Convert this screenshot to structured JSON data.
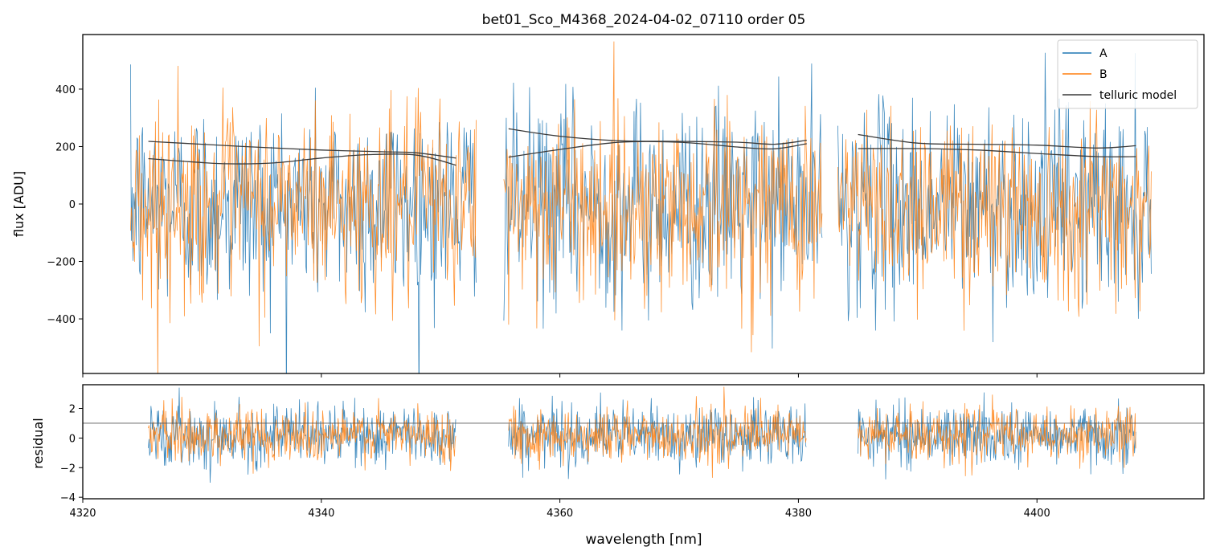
{
  "chart_data": [
    {
      "type": "line",
      "title": "bet01_Sco_M4368_2024-04-02_07110  order 05",
      "xlabel": "",
      "ylabel": "flux [ADU]",
      "xlim": [
        4320.0,
        4414.0
      ],
      "ylim": [
        -590,
        590
      ],
      "yticks": [
        -400,
        -200,
        0,
        200,
        400
      ],
      "ytick_labels": [
        "−400",
        "−200",
        "0",
        "200",
        "400"
      ],
      "legend_position": "top-right",
      "series": [
        {
          "name": "A",
          "color": "#1f77b4",
          "style": "noisy spectrum",
          "center": 0,
          "noise_sigma": 175,
          "segments": [
            [
              4324.0,
              4353.0
            ],
            [
              4355.3,
              4382.0
            ],
            [
              4383.3,
              4409.6
            ]
          ]
        },
        {
          "name": "B",
          "color": "#ff7f0e",
          "style": "noisy spectrum",
          "center": 0,
          "noise_sigma": 165,
          "segments": [
            [
              4324.0,
              4353.0
            ],
            [
              4355.3,
              4382.0
            ],
            [
              4383.3,
              4409.6
            ]
          ]
        },
        {
          "name": "telluric model",
          "color": "#3a3a3a",
          "style": "smooth model",
          "curves": [
            {
              "x": [
                4325.5,
                4330,
                4335,
                4340,
                4345,
                4348,
                4351.3
              ],
              "y": [
                218,
                208,
                197,
                188,
                182,
                178,
                160
              ]
            },
            {
              "x": [
                4325.5,
                4328,
                4332,
                4336,
                4340,
                4344,
                4348,
                4351.3
              ],
              "y": [
                158,
                150,
                140,
                143,
                160,
                172,
                170,
                135
              ]
            },
            {
              "x": [
                4355.7,
                4360,
                4365,
                4370,
                4375,
                4378,
                4380.7
              ],
              "y": [
                262,
                236,
                220,
                218,
                215,
                208,
                222
              ]
            },
            {
              "x": [
                4355.7,
                4360,
                4365,
                4370,
                4375,
                4378,
                4380.7
              ],
              "y": [
                163,
                190,
                215,
                215,
                198,
                192,
                210
              ]
            },
            {
              "x": [
                4385.0,
                4390,
                4395,
                4400,
                4405,
                4408.3
              ],
              "y": [
                242,
                212,
                208,
                205,
                195,
                203
              ]
            },
            {
              "x": [
                4385.0,
                4390,
                4395,
                4400,
                4405,
                4408.3
              ],
              "y": [
                193,
                193,
                188,
                176,
                165,
                165
              ]
            }
          ]
        }
      ]
    },
    {
      "type": "line",
      "title": "",
      "xlabel": "wavelength [nm]",
      "ylabel": "residual",
      "xlim": [
        4320.0,
        4414.0
      ],
      "ylim": [
        -4.1,
        3.6
      ],
      "yticks": [
        -4,
        -2,
        0,
        2
      ],
      "ytick_labels": [
        "−4",
        "−2",
        "0",
        "2"
      ],
      "xticks": [
        4320,
        4340,
        4360,
        4380,
        4400
      ],
      "xtick_labels": [
        "4320",
        "4340",
        "4360",
        "4380",
        "4400"
      ],
      "reference_line": 1,
      "series": [
        {
          "name": "A",
          "color": "#1f77b4",
          "style": "noisy residual",
          "center": 0.2,
          "noise_sigma": 1.0,
          "segments": [
            [
              4325.5,
              4351.3
            ],
            [
              4355.7,
              4380.7
            ],
            [
              4385.0,
              4408.3
            ]
          ]
        },
        {
          "name": "B",
          "color": "#ff7f0e",
          "style": "noisy residual",
          "center": 0.2,
          "noise_sigma": 0.9,
          "segments": [
            [
              4325.5,
              4351.3
            ],
            [
              4355.7,
              4380.7
            ],
            [
              4385.0,
              4408.3
            ]
          ]
        }
      ]
    }
  ]
}
